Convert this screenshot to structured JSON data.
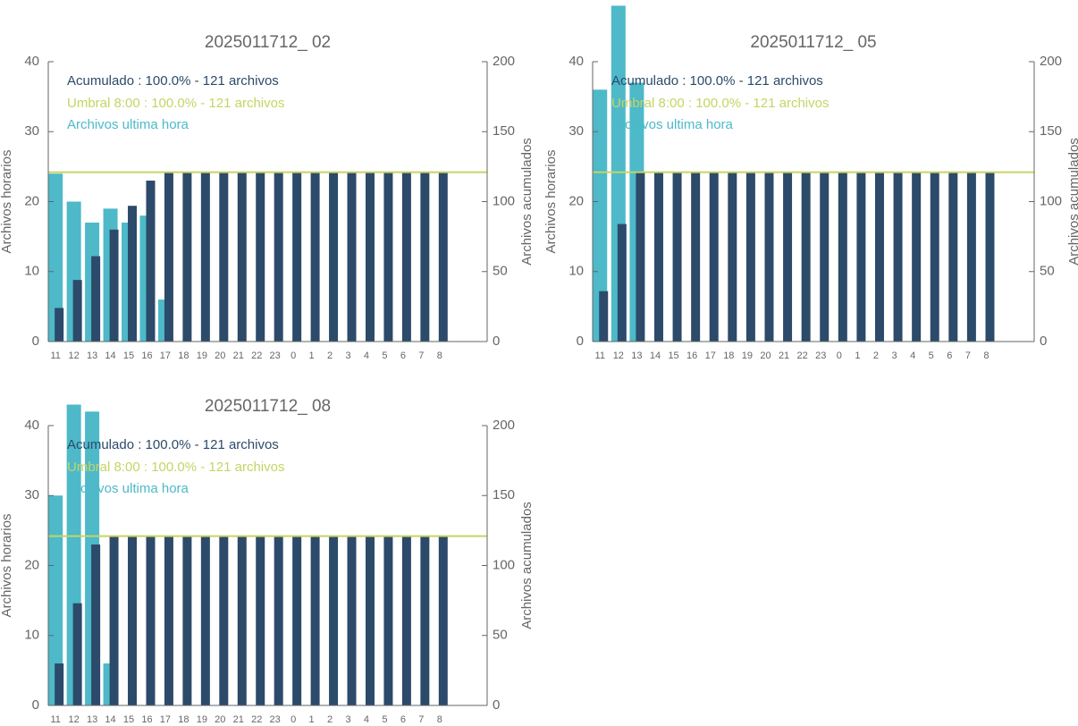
{
  "chart_data": [
    {
      "type": "bar",
      "title": "2025011712_ 02",
      "ylabel": "Archivos horarios",
      "y2label": "Archivos acumulados",
      "categories": [
        "11",
        "12",
        "13",
        "14",
        "15",
        "16",
        "17",
        "18",
        "19",
        "20",
        "21",
        "22",
        "23",
        "0",
        "1",
        "2",
        "3",
        "4",
        "5",
        "6",
        "7",
        "8",
        null,
        null
      ],
      "series": [
        {
          "name": "Archivos ultima hora",
          "color": "#4db9c9",
          "values": [
            24,
            20,
            17,
            19,
            17,
            18,
            6,
            0,
            0,
            0,
            0,
            0,
            0,
            0,
            0,
            0,
            0,
            0,
            0,
            0,
            0,
            0,
            null,
            null
          ]
        },
        {
          "name": "Acumulado : 100.0% - 121 archivos",
          "color": "#2c4a6a",
          "axis": "y2",
          "values": [
            24,
            44,
            61,
            80,
            97,
            115,
            121,
            121,
            121,
            121,
            121,
            121,
            121,
            121,
            121,
            121,
            121,
            121,
            121,
            121,
            121,
            121,
            null,
            null
          ]
        }
      ],
      "threshold": {
        "name": "Umbral 8:00 : 100.0% - 121 archivos",
        "color": "#c6d463",
        "value": 121,
        "axis": "y2"
      },
      "ylim": [
        0,
        40
      ],
      "yticks": [
        0,
        10,
        20,
        30,
        40
      ],
      "y2lim": [
        0,
        200
      ],
      "y2ticks": [
        0,
        50,
        100,
        150,
        200
      ]
    },
    {
      "type": "bar",
      "title": "2025011712_ 05",
      "ylabel": "Archivos horarios",
      "y2label": "Archivos acumulados",
      "categories": [
        "11",
        "12",
        "13",
        "14",
        "15",
        "16",
        "17",
        "18",
        "19",
        "20",
        "21",
        "22",
        "23",
        "0",
        "1",
        "2",
        "3",
        "4",
        "5",
        "6",
        "7",
        "8",
        null,
        null
      ],
      "series": [
        {
          "name": "Archivos ultima hora",
          "color": "#4db9c9",
          "values": [
            36,
            48,
            37,
            0,
            0,
            0,
            0,
            0,
            0,
            0,
            0,
            0,
            0,
            0,
            0,
            0,
            0,
            0,
            0,
            0,
            0,
            0,
            null,
            null
          ]
        },
        {
          "name": "Acumulado : 100.0% - 121 archivos",
          "color": "#2c4a6a",
          "axis": "y2",
          "values": [
            36,
            84,
            121,
            121,
            121,
            121,
            121,
            121,
            121,
            121,
            121,
            121,
            121,
            121,
            121,
            121,
            121,
            121,
            121,
            121,
            121,
            121,
            null,
            null
          ]
        }
      ],
      "threshold": {
        "name": "Umbral 8:00 : 100.0% - 121 archivos",
        "color": "#c6d463",
        "value": 121,
        "axis": "y2"
      },
      "ylim": [
        0,
        40
      ],
      "yticks": [
        0,
        10,
        20,
        30,
        40
      ],
      "y2lim": [
        0,
        200
      ],
      "y2ticks": [
        0,
        50,
        100,
        150,
        200
      ]
    },
    {
      "type": "bar",
      "title": "2025011712_ 08",
      "ylabel": "Archivos horarios",
      "y2label": "Archivos acumulados",
      "categories": [
        "11",
        "12",
        "13",
        "14",
        "15",
        "16",
        "17",
        "18",
        "19",
        "20",
        "21",
        "22",
        "23",
        "0",
        "1",
        "2",
        "3",
        "4",
        "5",
        "6",
        "7",
        "8",
        null,
        null
      ],
      "series": [
        {
          "name": "Archivos ultima hora",
          "color": "#4db9c9",
          "values": [
            30,
            43,
            42,
            6,
            0,
            0,
            0,
            0,
            0,
            0,
            0,
            0,
            0,
            0,
            0,
            0,
            0,
            0,
            0,
            0,
            0,
            0,
            null,
            null
          ]
        },
        {
          "name": "Acumulado : 100.0% - 121 archivos",
          "color": "#2c4a6a",
          "axis": "y2",
          "values": [
            30,
            73,
            115,
            121,
            121,
            121,
            121,
            121,
            121,
            121,
            121,
            121,
            121,
            121,
            121,
            121,
            121,
            121,
            121,
            121,
            121,
            121,
            null,
            null
          ]
        }
      ],
      "threshold": {
        "name": "Umbral 8:00 : 100.0% - 121 archivos",
        "color": "#c6d463",
        "value": 121,
        "axis": "y2"
      },
      "ylim": [
        0,
        40
      ],
      "yticks": [
        0,
        10,
        20,
        30,
        40
      ],
      "y2lim": [
        0,
        200
      ],
      "y2ticks": [
        0,
        50,
        100,
        150,
        200
      ]
    }
  ]
}
